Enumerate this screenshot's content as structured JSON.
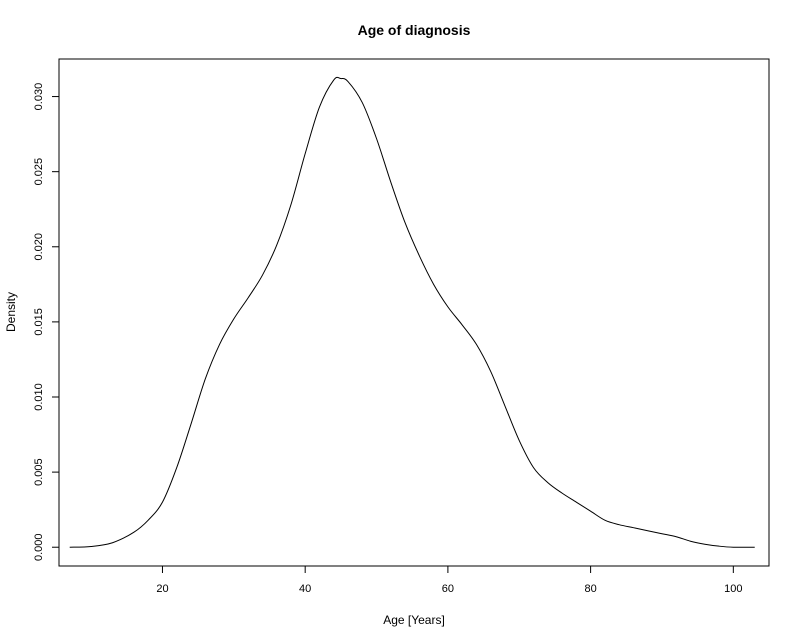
{
  "chart_data": {
    "type": "line",
    "title": "Age of diagnosis",
    "xlabel": "Age [Years]",
    "ylabel": "Density",
    "xlim": [
      5.5,
      105
    ],
    "ylim": [
      -0.00125,
      0.0325
    ],
    "x_ticks": [
      20,
      40,
      60,
      80,
      100
    ],
    "x_tick_labels": [
      "20",
      "40",
      "60",
      "80",
      "100"
    ],
    "y_ticks": [
      0.0,
      0.005,
      0.01,
      0.015,
      0.02,
      0.025,
      0.03
    ],
    "y_tick_labels": [
      "0.000",
      "0.005",
      "0.010",
      "0.015",
      "0.020",
      "0.025",
      "0.030"
    ],
    "grid": false,
    "series": [
      {
        "x": [
          7,
          10,
          13,
          16,
          18,
          20,
          22,
          24,
          26,
          28,
          30,
          32,
          34,
          36,
          38,
          40,
          42,
          44,
          45,
          46,
          48,
          50,
          52,
          54,
          56,
          58,
          60,
          62,
          64,
          66,
          68,
          70,
          72,
          74,
          76,
          78,
          80,
          82,
          84,
          86,
          88,
          90,
          92,
          94,
          96,
          98,
          100,
          103
        ],
        "y": [
          0.0,
          5e-05,
          0.0003,
          0.001,
          0.0018,
          0.003,
          0.0053,
          0.0082,
          0.0112,
          0.0135,
          0.0152,
          0.0166,
          0.0181,
          0.0201,
          0.0228,
          0.0262,
          0.0293,
          0.0311,
          0.0312,
          0.031,
          0.0296,
          0.0272,
          0.0243,
          0.0216,
          0.0194,
          0.0175,
          0.016,
          0.0148,
          0.0135,
          0.0117,
          0.0094,
          0.0071,
          0.0053,
          0.0043,
          0.0036,
          0.003,
          0.0024,
          0.0018,
          0.0015,
          0.0013,
          0.0011,
          0.0009,
          0.0007,
          0.0004,
          0.0002,
          7e-05,
          0.0,
          0.0
        ]
      }
    ]
  }
}
